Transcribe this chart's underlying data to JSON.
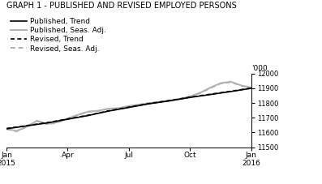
{
  "title": "GRAPH 1 - PUBLISHED AND REVISED EMPLOYED PERSONS",
  "ylabel": "'000",
  "ylim": [
    11500,
    12000
  ],
  "yticks": [
    11500,
    11600,
    11700,
    11800,
    11900,
    12000
  ],
  "xtick_labels": [
    "Jan\n2015",
    "Apr",
    "Jul",
    "Oct",
    "Jan\n2016"
  ],
  "xtick_positions": [
    0,
    3,
    6,
    9,
    12
  ],
  "background_color": "#ffffff",
  "pub_trend_x": [
    0,
    1,
    2,
    3,
    4,
    5,
    6,
    7,
    8,
    9,
    10,
    11,
    12
  ],
  "pub_trend_y": [
    11625,
    11645,
    11665,
    11690,
    11715,
    11745,
    11770,
    11795,
    11815,
    11838,
    11858,
    11878,
    11900
  ],
  "pub_seas_x": [
    0,
    0.5,
    1,
    1.5,
    2,
    2.5,
    3,
    3.5,
    4,
    4.5,
    5,
    5.5,
    6,
    6.5,
    7,
    7.5,
    8,
    8.5,
    9,
    9.5,
    10,
    10.5,
    11,
    11.5,
    12
  ],
  "pub_seas_y": [
    11625,
    11610,
    11640,
    11680,
    11658,
    11670,
    11695,
    11720,
    11742,
    11748,
    11762,
    11765,
    11780,
    11790,
    11800,
    11808,
    11818,
    11828,
    11845,
    11870,
    11905,
    11935,
    11945,
    11920,
    11905
  ],
  "rev_trend_x": [
    0,
    1,
    2,
    3,
    4,
    5,
    6,
    7,
    8,
    9,
    10,
    11,
    12
  ],
  "rev_trend_y": [
    11627,
    11647,
    11667,
    11692,
    11717,
    11747,
    11772,
    11797,
    11817,
    11840,
    11860,
    11880,
    11902
  ],
  "rev_seas_x": [
    0,
    0.5,
    1,
    1.5,
    2,
    2.5,
    3,
    3.5,
    4,
    4.5,
    5,
    5.5,
    6,
    6.5,
    7,
    7.5,
    8,
    8.5,
    9,
    9.5,
    10,
    10.5,
    11,
    11.5,
    12
  ],
  "rev_seas_y": [
    11622,
    11608,
    11638,
    11678,
    11655,
    11668,
    11693,
    11718,
    11740,
    11746,
    11760,
    11762,
    11778,
    11788,
    11798,
    11806,
    11816,
    11826,
    11842,
    11868,
    11902,
    11932,
    11942,
    11918,
    11902
  ]
}
